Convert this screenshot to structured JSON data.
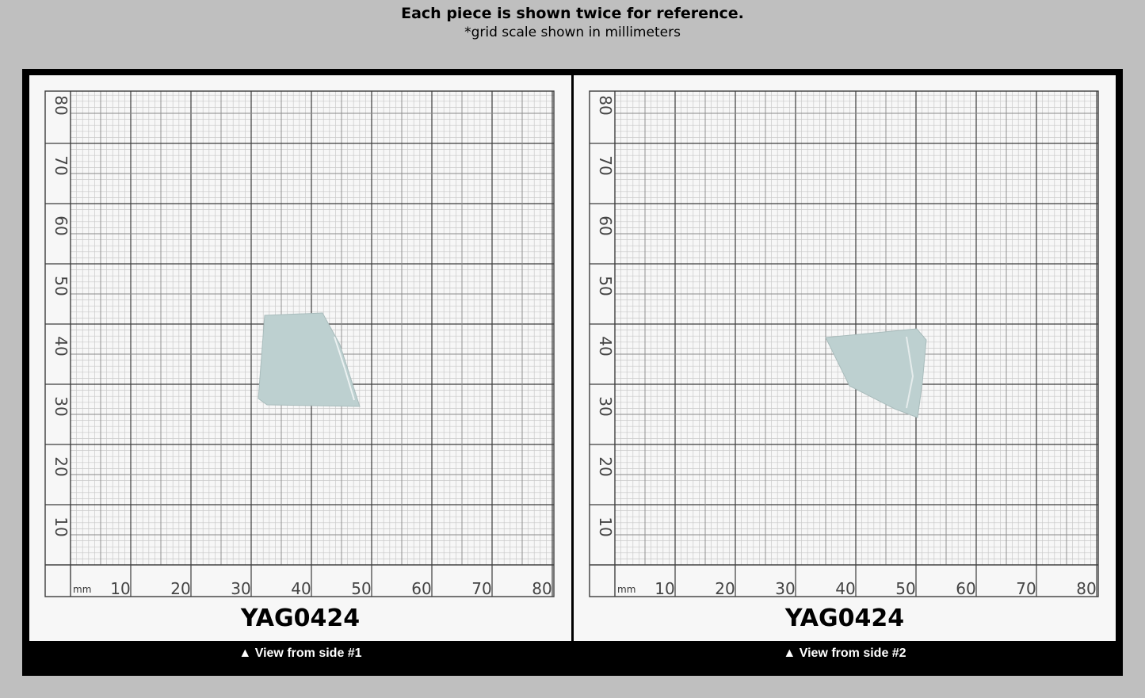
{
  "header": {
    "title": "Each piece is shown twice for reference.",
    "subtitle": "*grid scale shown in millimeters"
  },
  "panels": [
    {
      "code": "YAG0424",
      "caption": "▲ View from side #1",
      "unit_label": "mm",
      "x_ticks": [
        "10",
        "20",
        "30",
        "40",
        "50",
        "60",
        "70",
        "80"
      ],
      "y_ticks": [
        "80",
        "70",
        "60",
        "50",
        "40",
        "30",
        "20",
        "10"
      ]
    },
    {
      "code": "YAG0424",
      "caption": "▲ View from side #2",
      "unit_label": "mm",
      "x_ticks": [
        "10",
        "20",
        "30",
        "40",
        "50",
        "60",
        "70",
        "80"
      ],
      "y_ticks": [
        "80",
        "70",
        "60",
        "50",
        "40",
        "30",
        "20",
        "10"
      ]
    }
  ],
  "colors": {
    "background": "#bfbfbf",
    "frame": "#000000",
    "paper": "#f7f7f7",
    "grid_major": "#3c3c3c",
    "grid_minor": "#c9c9c9",
    "piece": "#bdd0d0"
  }
}
